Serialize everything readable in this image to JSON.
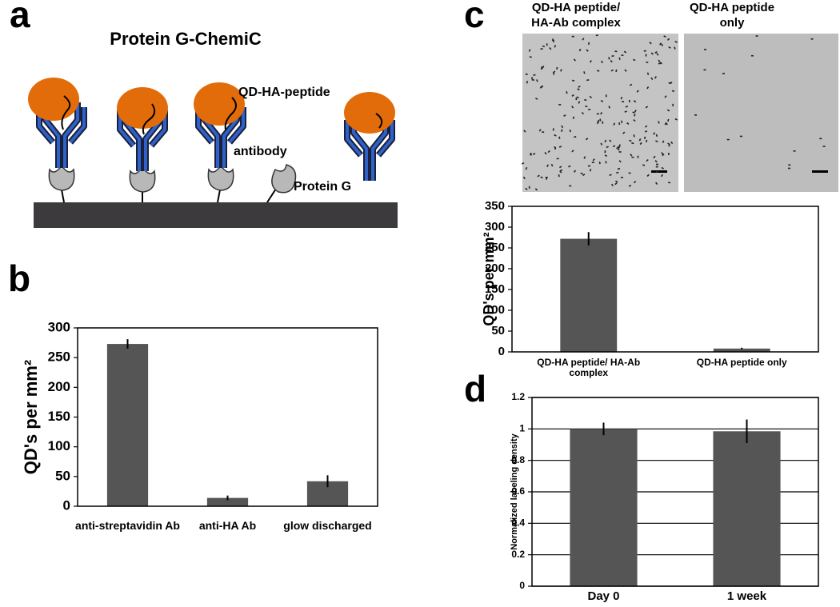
{
  "panels": {
    "a": {
      "letter": "a",
      "title": "Protein G-ChemiC",
      "labels": [
        "QD-HA-peptide",
        "antibody",
        "Protein G"
      ]
    },
    "b": {
      "letter": "b"
    },
    "c": {
      "letter": "c",
      "images": [
        {
          "caption": [
            "QD-HA peptide/",
            "HA-Ab complex"
          ]
        },
        {
          "caption": [
            "QD-HA peptide",
            "only"
          ]
        }
      ]
    },
    "d": {
      "letter": "d"
    }
  },
  "chart_data": [
    {
      "type": "bar",
      "ylabel": "QD's per mm²",
      "categories": [
        "anti-streptavidin Ab",
        "anti-HA Ab",
        "glow discharged"
      ],
      "values": [
        273,
        14,
        42
      ],
      "errors": [
        8,
        4,
        10
      ],
      "color": "#555555",
      "ylim": [
        0,
        300
      ],
      "yticks": [
        0,
        50,
        100,
        150,
        200,
        250,
        300
      ],
      "grid": false
    },
    {
      "type": "bar",
      "ylabel": "QD's per mm²",
      "categories": [
        "QD-HA peptide/ HA-Ab complex",
        "QD-HA peptide only"
      ],
      "values": [
        272,
        8
      ],
      "errors": [
        16,
        2
      ],
      "color": "#555555",
      "ylim": [
        0,
        350
      ],
      "yticks": [
        0,
        50,
        100,
        150,
        200,
        250,
        300,
        350
      ],
      "grid": false
    },
    {
      "type": "bar",
      "ylabel": "Normalized labeling density",
      "categories": [
        "Day 0",
        "1 week"
      ],
      "values": [
        1.0,
        0.985
      ],
      "errors": [
        0.04,
        0.075
      ],
      "color": "#555555",
      "ylim": [
        0,
        1.2
      ],
      "yticks": [
        0,
        0.2,
        0.4,
        0.6,
        0.8,
        1,
        1.2
      ],
      "grid": true
    }
  ]
}
